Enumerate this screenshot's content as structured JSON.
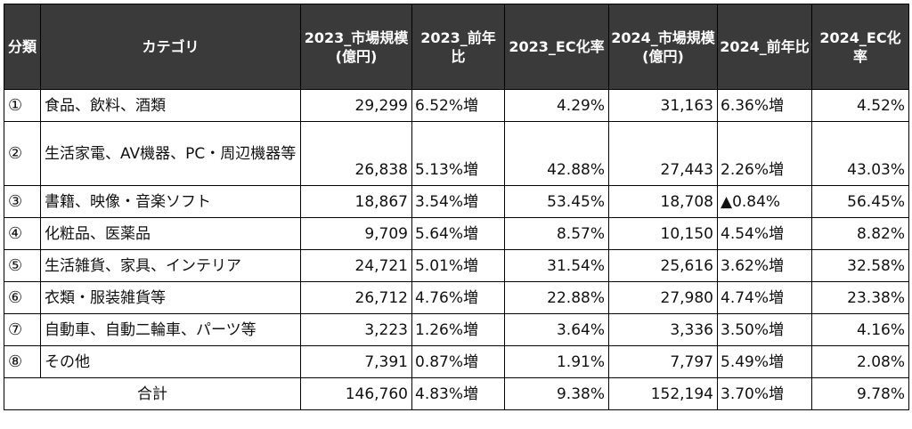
{
  "header": {
    "bunrui": "分類",
    "category": "カテゴリ",
    "size_2023": "2023_市場規模(億円)",
    "yoy_2023": "2023_前年比",
    "ec_2023": "2023_EC化率",
    "size_2024": "2024_市場規模(億円)",
    "yoy_2024": "2024_前年比",
    "ec_2024": "2024_EC化率"
  },
  "rows": [
    {
      "no": "①",
      "category": "食品、飲料、酒類",
      "size_2023": "29,299",
      "yoy_2023": "6.52%増",
      "ec_2023": "4.29%",
      "size_2024": "31,163",
      "yoy_2024": "6.36%増",
      "ec_2024": "4.52%"
    },
    {
      "no": "②",
      "category": "生活家電、AV機器、PC・周辺機器等",
      "size_2023": "26,838",
      "yoy_2023": "5.13%増",
      "ec_2023": "42.88%",
      "size_2024": "27,443",
      "yoy_2024": "2.26%増",
      "ec_2024": "43.03%"
    },
    {
      "no": "③",
      "category": "書籍、映像・音楽ソフト",
      "size_2023": "18,867",
      "yoy_2023": "3.54%増",
      "ec_2023": "53.45%",
      "size_2024": "18,708",
      "yoy_2024": "▲0.84%",
      "ec_2024": "56.45%"
    },
    {
      "no": "④",
      "category": "化粧品、医薬品",
      "size_2023": "9,709",
      "yoy_2023": "5.64%増",
      "ec_2023": "8.57%",
      "size_2024": "10,150",
      "yoy_2024": "4.54%増",
      "ec_2024": "8.82%"
    },
    {
      "no": "⑤",
      "category": "生活雑貨、家具、インテリア",
      "size_2023": "24,721",
      "yoy_2023": "5.01%増",
      "ec_2023": "31.54%",
      "size_2024": "25,616",
      "yoy_2024": "3.62%増",
      "ec_2024": "32.58%"
    },
    {
      "no": "⑥",
      "category": "衣類・服装雑貨等",
      "size_2023": "26,712",
      "yoy_2023": "4.76%増",
      "ec_2023": "22.88%",
      "size_2024": "27,980",
      "yoy_2024": "4.74%増",
      "ec_2024": "23.38%"
    },
    {
      "no": "⑦",
      "category": "自動車、自動二輪車、パーツ等",
      "size_2023": "3,223",
      "yoy_2023": "1.26%増",
      "ec_2023": "3.64%",
      "size_2024": "3,336",
      "yoy_2024": "3.50%増",
      "ec_2024": "4.16%"
    },
    {
      "no": "⑧",
      "category": "その他",
      "size_2023": "7,391",
      "yoy_2023": "0.87%増",
      "ec_2023": "1.91%",
      "size_2024": "7,797",
      "yoy_2024": "5.49%増",
      "ec_2024": "2.08%"
    }
  ],
  "total": {
    "label": "合計",
    "size_2023": "146,760",
    "yoy_2023": "4.83%増",
    "ec_2023": "9.38%",
    "size_2024": "152,194",
    "yoy_2024": "3.70%増",
    "ec_2024": "9.78%"
  },
  "colors": {
    "header_bg": "#3a3a3a",
    "header_text": "#ffffff",
    "border": "#000000"
  }
}
